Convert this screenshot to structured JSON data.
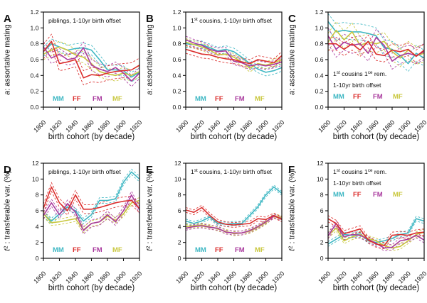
{
  "figure": {
    "background": "#ffffff"
  },
  "legend_labels": [
    "MM",
    "FF",
    "FM",
    "MF"
  ],
  "series_colors": {
    "MM": "#3eb7c3",
    "FF": "#db2e2d",
    "FM": "#a93a9e",
    "MF": "#c9c73d"
  },
  "chart_data": {
    "type": "line",
    "x_label": "birth cohort (by decade)",
    "x_values": [
      1800,
      1810,
      1820,
      1830,
      1840,
      1850,
      1860,
      1870,
      1880,
      1890,
      1900,
      1910,
      1920
    ],
    "x_ticks": [
      1800,
      1820,
      1840,
      1860,
      1880,
      1900,
      1920
    ],
    "rows": {
      "top": {
        "ylabel_segments": [
          {
            "t": "a",
            "italic": true
          },
          {
            "t": ": assortative mating"
          }
        ],
        "ylim": [
          0,
          1.2
        ],
        "yticks": [
          0,
          0.2,
          0.4,
          0.6,
          0.8,
          1.0,
          1.2
        ],
        "decimals": 1
      },
      "bottom": {
        "ylabel_segments": [
          {
            "t": "t",
            "italic": true
          },
          {
            "t": "2",
            "sup": true
          },
          {
            "t": " : transferable var. (%)"
          }
        ],
        "ylim": [
          0,
          12
        ],
        "yticks": [
          0,
          2,
          4,
          6,
          8,
          10,
          12
        ],
        "decimals": 0
      }
    },
    "panels": [
      {
        "id": "A",
        "row": "top",
        "title_pos": "top",
        "legend_pos": "bottom",
        "title_lines": [
          [
            {
              "t": "piblings, 1-10yr birth offset"
            }
          ]
        ],
        "series": [
          {
            "name": "MM",
            "band": 0.06,
            "values": [
              0.7,
              0.8,
              0.76,
              0.72,
              0.74,
              0.75,
              0.72,
              0.6,
              0.47,
              0.47,
              0.46,
              0.38,
              0.44
            ]
          },
          {
            "name": "FF",
            "band": 0.09,
            "values": [
              0.7,
              0.83,
              0.55,
              0.57,
              0.6,
              0.37,
              0.41,
              0.4,
              0.43,
              0.45,
              0.46,
              0.47,
              0.53
            ]
          },
          {
            "name": "FM",
            "band": 0.07,
            "values": [
              0.76,
              0.62,
              0.67,
              0.6,
              0.62,
              0.75,
              0.53,
              0.48,
              0.45,
              0.5,
              0.43,
              0.33,
              0.43
            ]
          },
          {
            "name": "MF",
            "band": 0.07,
            "values": [
              0.67,
              0.72,
              0.76,
              0.72,
              0.66,
              0.63,
              0.55,
              0.45,
              0.42,
              0.4,
              0.43,
              0.4,
              0.45
            ]
          }
        ]
      },
      {
        "id": "B",
        "row": "top",
        "title_pos": "top",
        "legend_pos": "bottom",
        "title_lines": [
          [
            {
              "t": "1"
            },
            {
              "t": "st",
              "sup": true
            },
            {
              "t": " cousins, 1-10yr birth offset"
            }
          ]
        ],
        "series": [
          {
            "name": "MM",
            "band": 0.045,
            "values": [
              0.8,
              0.79,
              0.79,
              0.75,
              0.71,
              0.73,
              0.7,
              0.63,
              0.55,
              0.48,
              0.44,
              0.46,
              0.5
            ]
          },
          {
            "name": "FF",
            "band": 0.05,
            "values": [
              0.73,
              0.7,
              0.67,
              0.66,
              0.63,
              0.61,
              0.6,
              0.57,
              0.55,
              0.6,
              0.58,
              0.56,
              0.65
            ]
          },
          {
            "name": "FM",
            "band": 0.045,
            "values": [
              0.85,
              0.81,
              0.78,
              0.73,
              0.7,
              0.71,
              0.58,
              0.56,
              0.52,
              0.54,
              0.52,
              0.54,
              0.57
            ]
          },
          {
            "name": "MF",
            "band": 0.045,
            "values": [
              0.82,
              0.79,
              0.76,
              0.72,
              0.66,
              0.67,
              0.63,
              0.57,
              0.49,
              0.55,
              0.53,
              0.56,
              0.6
            ]
          }
        ]
      },
      {
        "id": "C",
        "row": "top",
        "title_pos": "bottom",
        "legend_pos": "with-title",
        "title_lines": [
          [
            {
              "t": "1"
            },
            {
              "t": "st",
              "sup": true
            },
            {
              "t": " cousins 1"
            },
            {
              "t": "ce",
              "sup": true
            },
            {
              "t": " rem."
            }
          ],
          [
            {
              "t": "1-10yr birth offset"
            }
          ]
        ],
        "series": [
          {
            "name": "MM",
            "band": 0.1,
            "values": [
              1.08,
              0.95,
              0.97,
              0.95,
              0.95,
              0.93,
              0.9,
              0.75,
              0.73,
              0.65,
              0.55,
              0.68,
              0.62
            ]
          },
          {
            "name": "FF",
            "band": 0.08,
            "values": [
              0.8,
              0.8,
              0.73,
              0.8,
              0.72,
              0.83,
              0.67,
              0.65,
              0.72,
              0.7,
              0.73,
              0.64,
              0.72
            ]
          },
          {
            "name": "FM",
            "band": 0.1,
            "values": [
              0.9,
              0.73,
              0.82,
              0.78,
              0.8,
              0.68,
              0.88,
              0.78,
              0.58,
              0.65,
              0.68,
              0.65,
              0.7
            ]
          },
          {
            "name": "MF",
            "band": 0.11,
            "values": [
              0.82,
              0.97,
              0.85,
              0.95,
              0.78,
              0.82,
              0.8,
              0.83,
              0.7,
              0.62,
              0.72,
              0.65,
              0.68
            ]
          }
        ]
      },
      {
        "id": "D",
        "row": "bottom",
        "title_pos": "top",
        "legend_pos": "bottom",
        "title_lines": [
          [
            {
              "t": "piblings, 1-10yr birth offset"
            }
          ]
        ],
        "series": [
          {
            "name": "MM",
            "band": 0.35,
            "values": [
              5.6,
              4.7,
              5.6,
              6.5,
              6.0,
              4.7,
              5.5,
              7.3,
              7.3,
              7.5,
              9.6,
              10.9,
              10.0
            ]
          },
          {
            "name": "FF",
            "band": 0.55,
            "values": [
              6.3,
              9.0,
              7.0,
              6.0,
              8.0,
              6.2,
              6.2,
              6.4,
              6.7,
              7.0,
              7.2,
              7.3,
              6.3
            ]
          },
          {
            "name": "FM",
            "band": 0.45,
            "values": [
              5.4,
              7.0,
              5.5,
              6.9,
              5.8,
              3.5,
              4.4,
              4.6,
              5.5,
              4.6,
              6.0,
              8.0,
              6.1
            ]
          },
          {
            "name": "MF",
            "band": 0.35,
            "values": [
              5.6,
              4.5,
              4.6,
              4.8,
              5.0,
              3.6,
              4.4,
              4.6,
              5.3,
              4.8,
              5.6,
              7.0,
              7.3
            ]
          }
        ]
      },
      {
        "id": "E",
        "row": "bottom",
        "title_pos": "top",
        "legend_pos": "bottom",
        "title_lines": [
          [
            {
              "t": "1"
            },
            {
              "t": "st",
              "sup": true
            },
            {
              "t": " cousins, 1-10yr birth offset"
            }
          ]
        ],
        "series": [
          {
            "name": "MM",
            "band": 0.25,
            "values": [
              4.7,
              4.4,
              4.7,
              5.2,
              4.4,
              4.3,
              4.4,
              4.4,
              5.4,
              6.5,
              8.0,
              9.0,
              8.2
            ]
          },
          {
            "name": "FF",
            "band": 0.3,
            "values": [
              6.1,
              5.8,
              6.4,
              5.4,
              4.6,
              4.3,
              4.2,
              4.3,
              4.4,
              5.0,
              4.9,
              5.4,
              4.9
            ]
          },
          {
            "name": "FM",
            "band": 0.25,
            "values": [
              3.8,
              4.0,
              4.1,
              3.9,
              3.8,
              3.3,
              3.2,
              3.2,
              3.5,
              4.0,
              4.6,
              5.3,
              5.0
            ]
          },
          {
            "name": "MF",
            "band": 0.25,
            "values": [
              4.0,
              4.1,
              4.2,
              4.0,
              3.7,
              3.4,
              3.1,
              3.2,
              3.4,
              3.9,
              4.5,
              5.4,
              5.1
            ]
          }
        ]
      },
      {
        "id": "F",
        "row": "bottom",
        "title_pos": "top",
        "legend_pos": "with-title",
        "title_lines": [
          [
            {
              "t": "1"
            },
            {
              "t": "st",
              "sup": true
            },
            {
              "t": " cousins 1"
            },
            {
              "t": "ce",
              "sup": true
            },
            {
              "t": " rem."
            }
          ],
          [
            {
              "t": "1-10yr birth offset"
            }
          ]
        ],
        "series": [
          {
            "name": "MM",
            "band": 0.3,
            "values": [
              1.8,
              2.4,
              3.0,
              2.9,
              3.1,
              2.2,
              2.0,
              2.2,
              2.5,
              3.0,
              3.2,
              5.0,
              4.7
            ]
          },
          {
            "name": "FF",
            "band": 0.4,
            "values": [
              5.0,
              4.4,
              3.1,
              3.4,
              3.7,
              2.3,
              1.8,
              1.6,
              2.9,
              3.0,
              2.9,
              3.2,
              3.3
            ]
          },
          {
            "name": "FM",
            "band": 0.35,
            "values": [
              2.8,
              4.4,
              2.7,
              3.0,
              2.9,
              2.4,
              1.9,
              1.3,
              1.4,
              2.2,
              2.4,
              2.9,
              2.3
            ]
          },
          {
            "name": "MF",
            "band": 0.35,
            "values": [
              2.9,
              3.8,
              2.2,
              2.7,
              3.0,
              2.5,
              2.2,
              1.6,
              1.3,
              1.5,
              2.2,
              3.0,
              3.3
            ]
          }
        ]
      }
    ]
  }
}
